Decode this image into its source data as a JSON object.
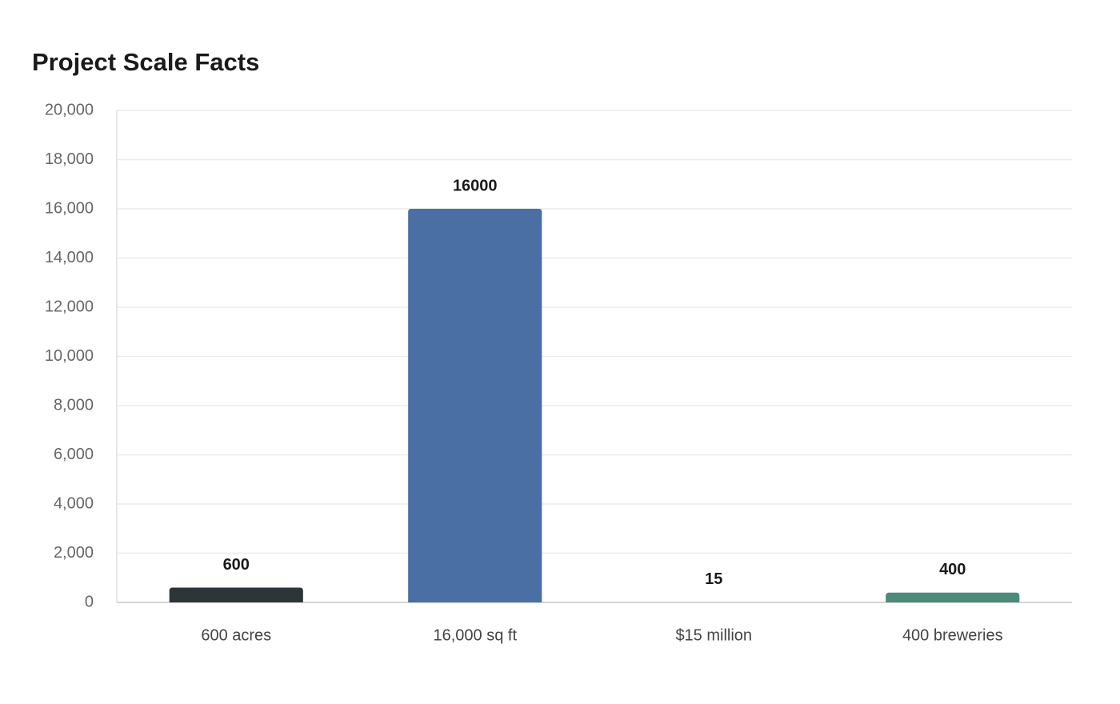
{
  "chart_data": {
    "type": "bar",
    "title": "Project Scale Facts",
    "categories": [
      "600 acres",
      "16,000 sq ft",
      "$15 million",
      "400 breweries"
    ],
    "values": [
      600,
      16000,
      15,
      400
    ],
    "colors": [
      "#2e3538",
      "#4a6fa5",
      "#c3c9cd",
      "#4e8a7a"
    ],
    "ylim": [
      0,
      20000
    ],
    "yticks": [
      0,
      {
        "value": 2000,
        "label": "2,000"
      },
      {
        "value": 4000,
        "label": "4,000"
      },
      {
        "value": 6000,
        "label": "6,000"
      },
      {
        "value": 8000,
        "label": "8,000"
      },
      {
        "value": 10000,
        "label": "10,000"
      },
      {
        "value": 12000,
        "label": "12,000"
      },
      {
        "value": 14000,
        "label": "14,000"
      },
      {
        "value": 16000,
        "label": "16,000"
      },
      {
        "value": 18000,
        "label": "18,000"
      },
      {
        "value": 20000,
        "label": "20,000"
      }
    ],
    "grid": true
  }
}
